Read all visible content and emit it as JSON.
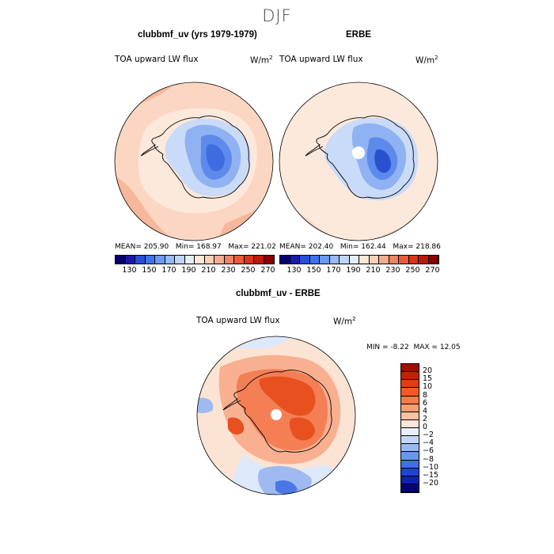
{
  "figure": {
    "title": "DJF"
  },
  "panels": [
    {
      "id": "model",
      "title": "clubbmf_uv (yrs 1979-1979)",
      "label": "TOA upward LW flux",
      "units_base": "W/m",
      "units_exp": "2",
      "stats": {
        "mean_label": "MEAN=",
        "mean": "205.90",
        "min_label": "Min=",
        "min": "168.97",
        "max_label": "Max=",
        "max": "221.02"
      }
    },
    {
      "id": "obs",
      "title": "ERBE",
      "label": "TOA upward LW flux",
      "units_base": "W/m",
      "units_exp": "2",
      "stats": {
        "mean_label": "MEAN=",
        "mean": "202.40",
        "min_label": "Min=",
        "min": "162.44",
        "max_label": "Max=",
        "max": "218.86"
      }
    },
    {
      "id": "diff",
      "title": "clubbmf_uv - ERBE",
      "label": "TOA upward LW flux",
      "units_base": "W/m",
      "units_exp": "2",
      "stats": {
        "min_label": "MIN =",
        "min": "-8.22",
        "max_label": "MAX =",
        "max": "12.05"
      }
    }
  ],
  "colorbar_abs": {
    "tick_labels": [
      "130",
      "150",
      "170",
      "190",
      "210",
      "230",
      "250",
      "270"
    ],
    "colors": [
      "#08006e",
      "#1a1aa6",
      "#2a4fd6",
      "#3f74ef",
      "#6b9af3",
      "#97bbf6",
      "#c0d6f8",
      "#e6eefb",
      "#fde7d6",
      "#fbd0b5",
      "#f6ad8f",
      "#ef8466",
      "#e85c3c",
      "#d93516",
      "#bd1a0a",
      "#8a0000"
    ]
  },
  "colorbar_diff": {
    "tick_labels": [
      "20",
      "15",
      "10",
      "8",
      "6",
      "4",
      "2",
      "0",
      "−2",
      "−4",
      "−6",
      "−8",
      "−10",
      "−15",
      "−20"
    ],
    "colors": [
      "#9c1000",
      "#c42006",
      "#e63b0e",
      "#f25a26",
      "#f77a48",
      "#f99d74",
      "#fbc2a4",
      "#fde6d8",
      "#eaf1fb",
      "#c4d7f5",
      "#98b9f0",
      "#6b97eb",
      "#3f70e4",
      "#1f45d0",
      "#0d22ad",
      "#04007e"
    ]
  },
  "map_palette": {
    "abs_background": "#fbd7c3",
    "abs_warm": "#f7b79b",
    "abs_pale": "#fde9dc",
    "abs_cold1": "#c9dbf8",
    "abs_cold2": "#8fb2f2",
    "abs_cold3": "#5d8aeb",
    "abs_cold4": "#3f6de0",
    "abs_cold5": "#2a50d0",
    "diff_bg": "#fce4d4",
    "diff_warm1": "#f9b090",
    "diff_warm2": "#f47f55",
    "diff_warm3": "#e8501f",
    "diff_cool1": "#dde8fb",
    "diff_cool2": "#9ebaf1",
    "diff_cool3": "#4b76e6",
    "coast": "#000000"
  }
}
